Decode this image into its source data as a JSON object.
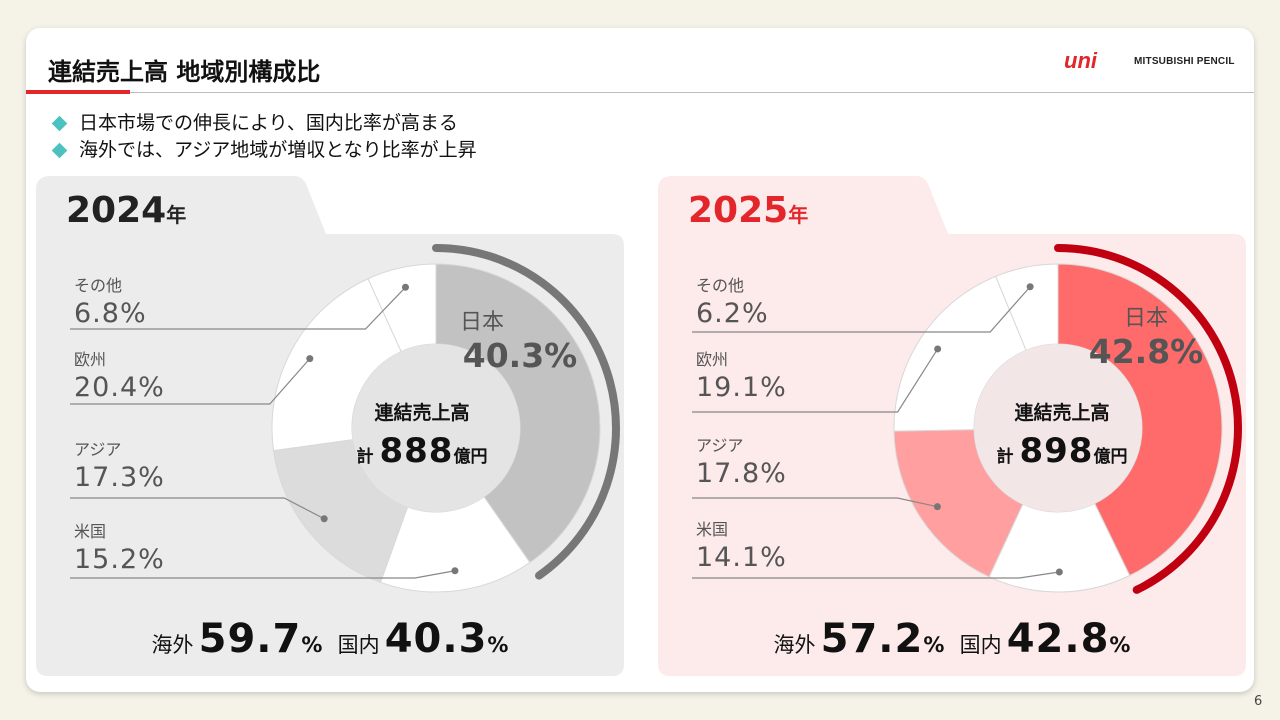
{
  "header": {
    "title": "連結売上高 地域別構成比",
    "logo_mark": "uni",
    "logo_text": "MITSUBISHI PENCIL"
  },
  "bullets": [
    "日本市場での伸長により、国内比率が高まる",
    "海外では、アジア地域が増収となり比率が上昇"
  ],
  "page_number": "6",
  "colors": {
    "accent_red": "#e3262b",
    "bullet_teal": "#4cc2c0",
    "panel_2024_bg": "#ececec",
    "panel_2025_bg": "#fdeaea",
    "arc_2024": "#777777",
    "arc_2025": "#c00010"
  },
  "panels": [
    {
      "year": "2024",
      "year_unit": "年",
      "center_title": "連結売上高",
      "center_prefix": "計",
      "center_value": "888",
      "center_unit": "億円",
      "japan_name": "日本",
      "japan_pct": "40.3%",
      "labels": [
        {
          "name": "その他",
          "pct": "6.8%"
        },
        {
          "name": "欧州",
          "pct": "20.4%"
        },
        {
          "name": "アジア",
          "pct": "17.3%"
        },
        {
          "name": "米国",
          "pct": "15.2%"
        }
      ],
      "overseas_label": "海外",
      "overseas_value": "59.7",
      "domestic_label": "国内",
      "domestic_value": "40.3",
      "percent_sign": "%"
    },
    {
      "year": "2025",
      "year_unit": "年",
      "center_title": "連結売上高",
      "center_prefix": "計",
      "center_value": "898",
      "center_unit": "億円",
      "japan_name": "日本",
      "japan_pct": "42.8%",
      "labels": [
        {
          "name": "その他",
          "pct": "6.2%"
        },
        {
          "name": "欧州",
          "pct": "19.1%"
        },
        {
          "name": "アジア",
          "pct": "17.8%"
        },
        {
          "name": "米国",
          "pct": "14.1%"
        }
      ],
      "overseas_label": "海外",
      "overseas_value": "57.2",
      "domestic_label": "国内",
      "domestic_value": "42.8",
      "percent_sign": "%"
    }
  ],
  "chart_data": [
    {
      "type": "pie",
      "title": "2024年",
      "categories": [
        "日本",
        "米国",
        "アジア",
        "欧州",
        "その他"
      ],
      "values": [
        40.3,
        15.2,
        17.3,
        20.4,
        6.8
      ],
      "colors": [
        "#c2c2c2",
        "#ffffff",
        "#dcdcdc",
        "#ffffff",
        "#ffffff"
      ],
      "total": "888億円"
    },
    {
      "type": "pie",
      "title": "2025年",
      "categories": [
        "日本",
        "米国",
        "アジア",
        "欧州",
        "その他"
      ],
      "values": [
        42.8,
        14.1,
        17.8,
        19.1,
        6.2
      ],
      "colors": [
        "#ff6b6b",
        "#ffffff",
        "#ff9f9f",
        "#ffffff",
        "#ffffff"
      ],
      "total": "898億円"
    }
  ]
}
